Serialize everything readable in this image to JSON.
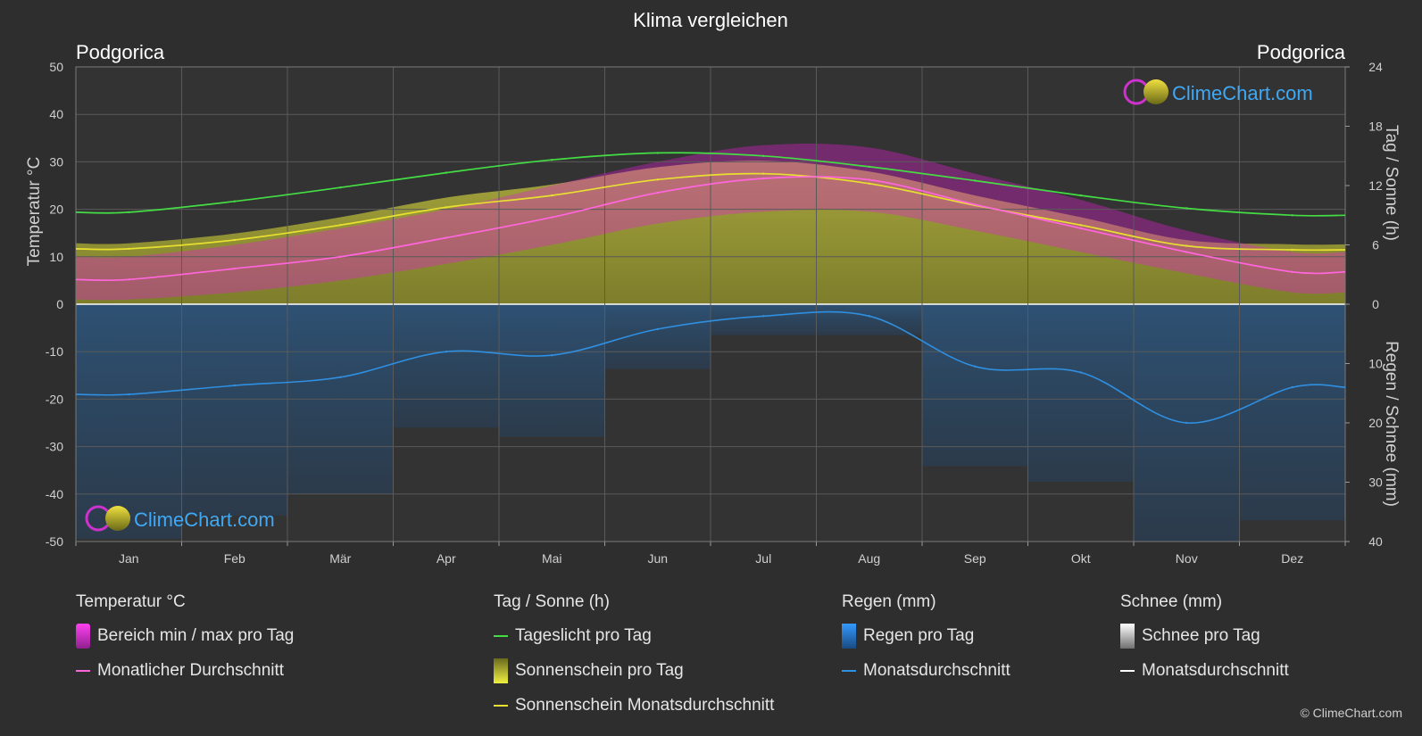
{
  "chart_data": {
    "type": "line",
    "title": "Klima vergleichen",
    "location_left": "Podgorica",
    "location_right": "Podgorica",
    "categories": [
      "Jan",
      "Feb",
      "Mär",
      "Apr",
      "Mai",
      "Jun",
      "Jul",
      "Aug",
      "Sep",
      "Okt",
      "Nov",
      "Dez"
    ],
    "y_left": {
      "label": "Temperatur °C",
      "range": [
        -50,
        50
      ],
      "ticks": [
        "50",
        "40",
        "30",
        "20",
        "10",
        "0",
        "-10",
        "-20",
        "-30",
        "-40",
        "-50"
      ]
    },
    "y_right_top": {
      "label": "Tag / Sonne (h)",
      "range": [
        0,
        24
      ],
      "ticks": [
        "24",
        "18",
        "12",
        "6",
        "0"
      ]
    },
    "y_right_bottom": {
      "label": "Regen / Schnee (mm)",
      "range": [
        0,
        40
      ],
      "ticks": [
        "10",
        "20",
        "30",
        "40"
      ]
    },
    "series": [
      {
        "name": "Tageslicht pro Tag",
        "axis": "sun_h",
        "color": "#44dd44",
        "values": [
          9.3,
          10.4,
          11.8,
          13.3,
          14.6,
          15.3,
          15.0,
          13.9,
          12.5,
          11.0,
          9.7,
          9.0
        ]
      },
      {
        "name": "Sonnenschein Monatsdurchschnitt",
        "axis": "sun_h",
        "color": "#e8e030",
        "values": [
          5.6,
          6.5,
          8.0,
          9.8,
          11.0,
          12.6,
          13.2,
          12.2,
          10.0,
          8.0,
          5.9,
          5.5
        ]
      },
      {
        "name": "Monatlicher Durchschnitt",
        "axis": "temp_c",
        "color": "#ff66dd",
        "values": [
          5.2,
          7.5,
          10.0,
          14.0,
          18.3,
          23.5,
          26.5,
          26.2,
          21.0,
          16.0,
          11.0,
          6.8
        ]
      },
      {
        "name": "Monatsdurchschnitt",
        "axis": "rain_mm",
        "color": "#2f8fe0",
        "values": [
          15.2,
          13.7,
          12.3,
          8.0,
          8.6,
          4.2,
          2.0,
          2.0,
          10.5,
          11.5,
          20.0,
          14.0
        ]
      }
    ],
    "temp_range_min": [
      1.0,
      2.5,
      5.0,
      8.5,
      12.5,
      17.0,
      19.5,
      19.5,
      15.5,
      11.0,
      6.5,
      2.5
    ],
    "temp_range_max": [
      10.0,
      12.5,
      16.0,
      20.0,
      25.0,
      30.0,
      33.5,
      33.0,
      27.5,
      22.0,
      15.5,
      11.0
    ],
    "legend": {
      "temp": {
        "header": "Temperatur °C",
        "items": [
          "Bereich min / max pro Tag",
          "Monatlicher Durchschnitt"
        ]
      },
      "sun": {
        "header": "Tag / Sonne (h)",
        "items": [
          "Tageslicht pro Tag",
          "Sonnenschein pro Tag",
          "Sonnenschein Monatsdurchschnitt"
        ]
      },
      "rain": {
        "header": "Regen (mm)",
        "items": [
          "Regen pro Tag",
          "Monatsdurchschnitt"
        ]
      },
      "snow": {
        "header": "Schnee (mm)",
        "items": [
          "Schnee pro Tag",
          "Monatsdurchschnitt"
        ]
      }
    },
    "colors": {
      "background": "#2e2e2e",
      "temp_range": "#e020d0",
      "sunshine_fill": "#a8a830",
      "rain_fill": "#2a6aa8",
      "snow": "#ffffff"
    },
    "grid": true
  },
  "logo": {
    "text": "ClimeChart.com"
  },
  "copyright": "© ClimeChart.com"
}
